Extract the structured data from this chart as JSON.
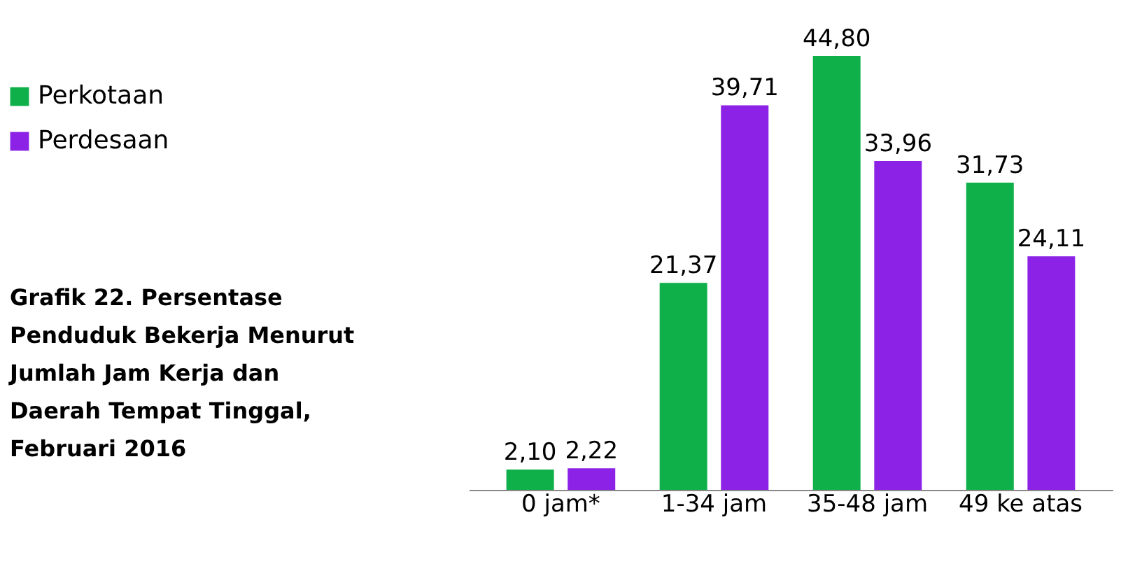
{
  "chart_data": {
    "type": "bar",
    "title": "Grafik 22. Persentase Penduduk Bekerja Menurut Jumlah Jam Kerja dan Daerah Tempat Tinggal, Februari 2016",
    "categories": [
      "0 jam*",
      "1-34 jam",
      "35-48 jam",
      "49 ke atas"
    ],
    "series": [
      {
        "name": "Perkotaan",
        "color": "#0fb04a",
        "values": [
          2.1,
          21.37,
          44.8,
          31.73
        ],
        "value_labels": [
          "2,10",
          "21,37",
          "44,80",
          "31,73"
        ]
      },
      {
        "name": "Perdesaan",
        "color": "#8b22e6",
        "values": [
          2.22,
          39.71,
          33.96,
          24.11
        ],
        "value_labels": [
          "2,22",
          "39,71",
          "33,96",
          "24,11"
        ]
      }
    ],
    "legend": "left",
    "grid": false,
    "tick_labels": "x"
  }
}
